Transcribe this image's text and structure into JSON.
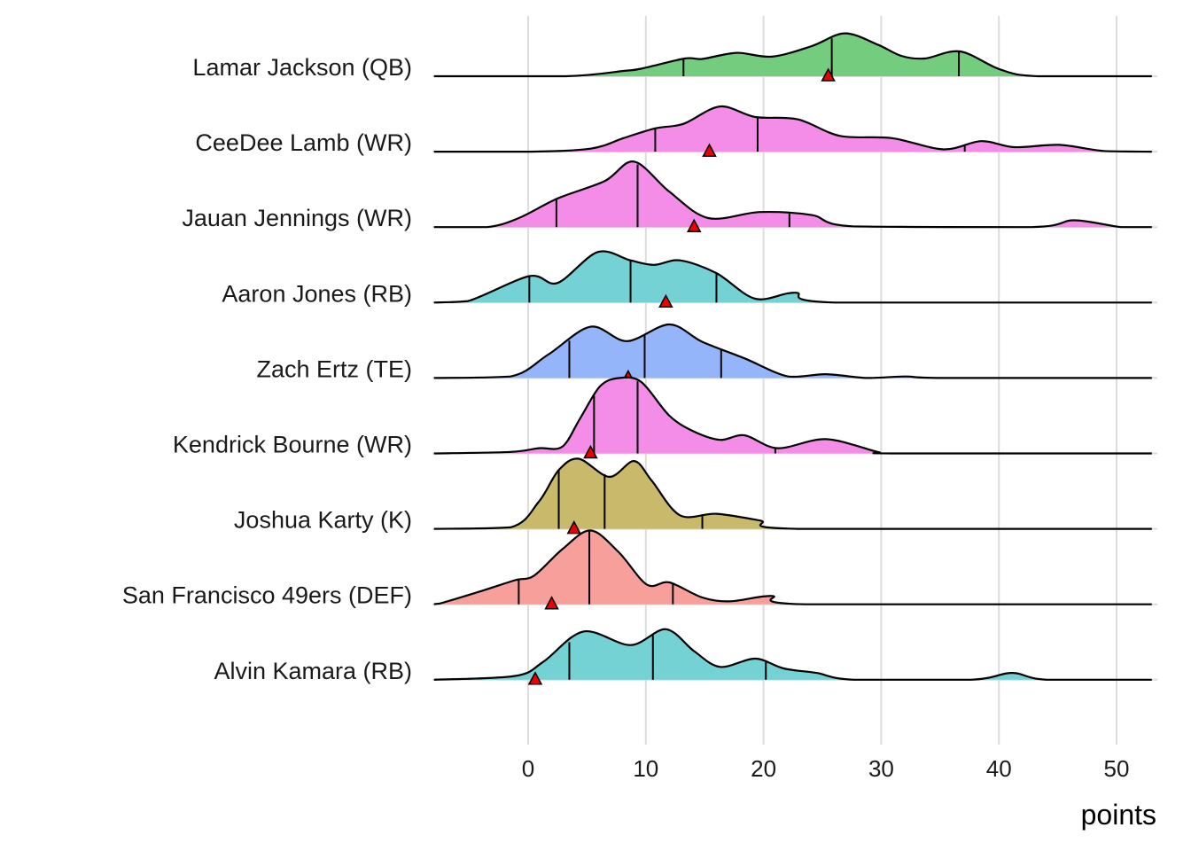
{
  "chart_data": {
    "type": "ridgeline",
    "title": "",
    "xlabel": "points",
    "ylabel": "",
    "xlim": [
      -8,
      53
    ],
    "xticks": [
      0,
      10,
      20,
      30,
      40,
      50
    ],
    "xtick_labels": [
      "0",
      "10",
      "20",
      "30",
      "40",
      "50"
    ],
    "grid": "vertical major gridlines",
    "marker_legend": "red triangle marks a single value per player; vertical lines mark quartiles",
    "series": [
      {
        "name": "Lamar Jackson (QB)",
        "color": "#74cd7e",
        "quantiles": [
          13.2,
          25.8,
          36.6
        ],
        "marker": 25.5,
        "density": [
          [
            -8,
            0
          ],
          [
            3.2,
            0
          ],
          [
            8.1,
            0.07
          ],
          [
            9.6,
            0.1
          ],
          [
            13.3,
            0.235
          ],
          [
            14.8,
            0.23
          ],
          [
            17.7,
            0.31
          ],
          [
            20.7,
            0.26
          ],
          [
            24.1,
            0.4
          ],
          [
            26.9,
            0.57
          ],
          [
            29.7,
            0.42
          ],
          [
            31.7,
            0.27
          ],
          [
            33.7,
            0.235
          ],
          [
            36.7,
            0.33
          ],
          [
            40.1,
            0.09
          ],
          [
            43.3,
            0
          ],
          [
            53,
            0
          ]
        ]
      },
      {
        "name": "CeeDee Lamb (WR)",
        "color": "#f48de8",
        "quantiles": [
          10.8,
          19.5,
          37.1
        ],
        "marker": 15.4,
        "density": [
          [
            -8,
            0
          ],
          [
            0.1,
            0
          ],
          [
            5.3,
            0.04
          ],
          [
            8.1,
            0.18
          ],
          [
            10.8,
            0.31
          ],
          [
            13.2,
            0.37
          ],
          [
            16.3,
            0.6
          ],
          [
            19.3,
            0.46
          ],
          [
            22.9,
            0.43
          ],
          [
            26.5,
            0.21
          ],
          [
            30.9,
            0.18
          ],
          [
            35.3,
            0.03
          ],
          [
            38.5,
            0.14
          ],
          [
            41.3,
            0.06
          ],
          [
            45.1,
            0.09
          ],
          [
            48.9,
            0.01
          ],
          [
            53,
            0
          ]
        ]
      },
      {
        "name": "Jauan Jennings (WR)",
        "color": "#f48de8",
        "quantiles": [
          2.4,
          9.3,
          22.2
        ],
        "marker": 14.1,
        "density": [
          [
            -8,
            0
          ],
          [
            -3.5,
            0
          ],
          [
            -0.8,
            0.12
          ],
          [
            2.5,
            0.38
          ],
          [
            6.5,
            0.61
          ],
          [
            9.0,
            0.87
          ],
          [
            12.0,
            0.47
          ],
          [
            15.3,
            0.12
          ],
          [
            19.7,
            0.2
          ],
          [
            24.1,
            0.16
          ],
          [
            27.6,
            0.01
          ],
          [
            42.8,
            0
          ],
          [
            46.4,
            0.09
          ],
          [
            50.4,
            0
          ],
          [
            53,
            0
          ]
        ]
      },
      {
        "name": "Aaron Jones (RB)",
        "color": "#74d2d4",
        "quantiles": [
          0.1,
          8.7,
          16.0
        ],
        "marker": 11.7,
        "density": [
          [
            -8,
            0
          ],
          [
            -5.1,
            0.02
          ],
          [
            0.1,
            0.35
          ],
          [
            2.5,
            0.26
          ],
          [
            5.9,
            0.67
          ],
          [
            8.7,
            0.56
          ],
          [
            10.7,
            0.5
          ],
          [
            12.9,
            0.56
          ],
          [
            16.0,
            0.39
          ],
          [
            19.3,
            0.05
          ],
          [
            22.7,
            0.13
          ],
          [
            26.1,
            0
          ],
          [
            53,
            0
          ]
        ]
      },
      {
        "name": "Zach Ertz (TE)",
        "color": "#95b5fb",
        "quantiles": [
          3.5,
          9.9,
          16.4
        ],
        "marker": 8.5,
        "density": [
          [
            -8,
            0
          ],
          [
            -1.5,
            0.02
          ],
          [
            1.7,
            0.31
          ],
          [
            5.3,
            0.68
          ],
          [
            8.4,
            0.49
          ],
          [
            12.0,
            0.71
          ],
          [
            14.8,
            0.48
          ],
          [
            18.4,
            0.26
          ],
          [
            22.1,
            0.02
          ],
          [
            25.3,
            0.05
          ],
          [
            28.8,
            0
          ],
          [
            32.1,
            0.02
          ],
          [
            35.3,
            0
          ],
          [
            53,
            0
          ]
        ]
      },
      {
        "name": "Kendrick Bourne (WR)",
        "color": "#f48de8",
        "quantiles": [
          5.6,
          9.3,
          21.0
        ],
        "marker": 5.3,
        "density": [
          [
            -8,
            0
          ],
          [
            -1.5,
            0.02
          ],
          [
            0.9,
            0.07
          ],
          [
            2.9,
            0.09
          ],
          [
            4.4,
            0.46
          ],
          [
            6.1,
            0.89
          ],
          [
            7.7,
            1.0
          ],
          [
            9.6,
            0.95
          ],
          [
            12.0,
            0.5
          ],
          [
            14.1,
            0.29
          ],
          [
            16.3,
            0.18
          ],
          [
            18.4,
            0.24
          ],
          [
            21.2,
            0.07
          ],
          [
            25.3,
            0.19
          ],
          [
            29.7,
            0.02
          ],
          [
            31.2,
            0
          ],
          [
            53,
            0
          ]
        ]
      },
      {
        "name": "Joshua Karty (K)",
        "color": "#c8ba6a",
        "quantiles": [
          2.6,
          6.5,
          14.8
        ],
        "marker": 3.9,
        "density": [
          [
            -8,
            0
          ],
          [
            -1.5,
            0.02
          ],
          [
            0.9,
            0.36
          ],
          [
            2.6,
            0.78
          ],
          [
            4.3,
            0.93
          ],
          [
            6.9,
            0.69
          ],
          [
            9.0,
            0.9
          ],
          [
            10.5,
            0.64
          ],
          [
            12.9,
            0.18
          ],
          [
            16.0,
            0.2
          ],
          [
            19.7,
            0.11
          ],
          [
            22.9,
            0
          ],
          [
            53,
            0
          ]
        ]
      },
      {
        "name": "San Francisco 49ers (DEF)",
        "color": "#f7a09b",
        "quantiles": [
          -0.8,
          5.2,
          12.3
        ],
        "marker": 2.0,
        "density": [
          [
            -8,
            0
          ],
          [
            -7.5,
            0.01
          ],
          [
            -3.9,
            0.18
          ],
          [
            -1.1,
            0.32
          ],
          [
            0.5,
            0.38
          ],
          [
            2.9,
            0.73
          ],
          [
            5.3,
            0.98
          ],
          [
            7.7,
            0.69
          ],
          [
            10.1,
            0.26
          ],
          [
            12.0,
            0.29
          ],
          [
            14.8,
            0.09
          ],
          [
            17.2,
            0.04
          ],
          [
            20.7,
            0.11
          ],
          [
            23.6,
            0
          ],
          [
            53,
            0
          ]
        ]
      },
      {
        "name": "Alvin Kamara (RB)",
        "color": "#74d2d4",
        "quantiles": [
          3.5,
          10.6,
          20.2
        ],
        "marker": 0.6,
        "density": [
          [
            -8,
            0
          ],
          [
            -1.1,
            0.05
          ],
          [
            1.3,
            0.24
          ],
          [
            4.7,
            0.64
          ],
          [
            8.7,
            0.46
          ],
          [
            11.7,
            0.67
          ],
          [
            14.1,
            0.38
          ],
          [
            16.3,
            0.17
          ],
          [
            19.3,
            0.28
          ],
          [
            21.7,
            0.15
          ],
          [
            24.5,
            0.09
          ],
          [
            27.7,
            0
          ],
          [
            37.6,
            0
          ],
          [
            41.1,
            0.09
          ],
          [
            44.1,
            0
          ],
          [
            53,
            0
          ]
        ]
      }
    ]
  }
}
